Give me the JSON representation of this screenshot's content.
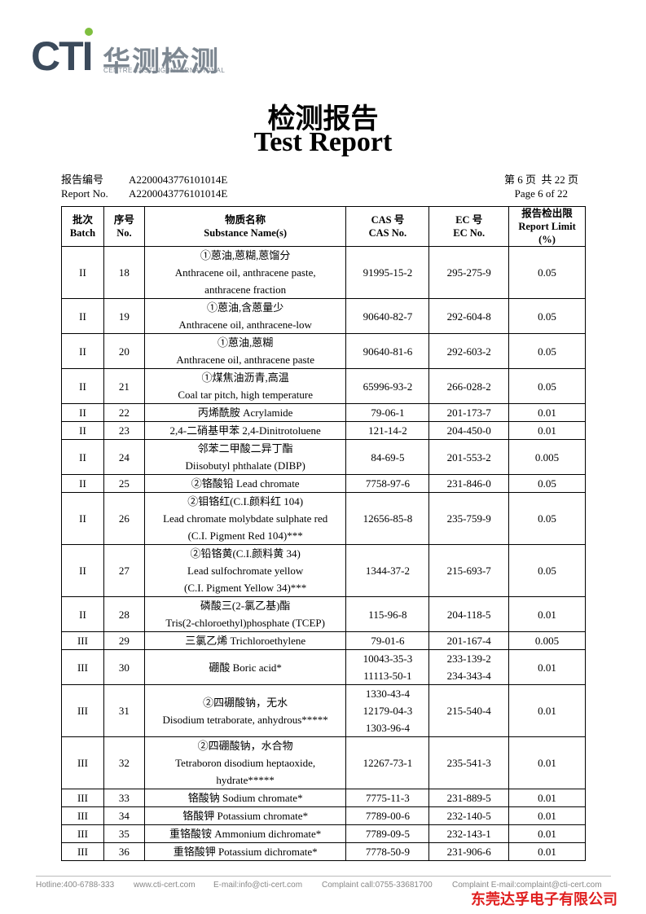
{
  "header": {
    "logo_letters": "CTI",
    "logo_cn": "华测检测",
    "logo_en": "CENTRE TESTING INTERNATIONAL"
  },
  "title_cn": "检测报告",
  "title_en": "Test Report",
  "report_info": {
    "no_label_cn": "报告编号",
    "no_cn": "A2200043776101014E",
    "no_label_en": "Report No.",
    "no_en": "A2200043776101014E",
    "page_cn": "第 6 页  共 22 页",
    "page_en": "Page 6 of 22"
  },
  "table": {
    "columns": [
      {
        "cn": "批次",
        "en": "Batch"
      },
      {
        "cn": "序号",
        "en": "No."
      },
      {
        "cn": "物质名称",
        "en": "Substance Name(s)"
      },
      {
        "cn": "CAS 号",
        "en": "CAS No."
      },
      {
        "cn": "EC 号",
        "en": "EC No."
      },
      {
        "cn": "报告检出限",
        "en": "Report Limit (%)"
      }
    ],
    "rows": [
      {
        "batch": "II",
        "no": "18",
        "name": [
          "①蒽油,蒽糊,蒽馏分",
          "Anthracene oil, anthracene paste,",
          "anthracene fraction"
        ],
        "cas": [
          "91995-15-2"
        ],
        "ec": [
          "295-275-9"
        ],
        "limit": "0.05"
      },
      {
        "batch": "II",
        "no": "19",
        "name": [
          "①蒽油,含蒽量少",
          "Anthracene oil, anthracene-low"
        ],
        "cas": [
          "90640-82-7"
        ],
        "ec": [
          "292-604-8"
        ],
        "limit": "0.05"
      },
      {
        "batch": "II",
        "no": "20",
        "name": [
          "①蒽油,蒽糊",
          "Anthracene oil, anthracene paste"
        ],
        "cas": [
          "90640-81-6"
        ],
        "ec": [
          "292-603-2"
        ],
        "limit": "0.05"
      },
      {
        "batch": "II",
        "no": "21",
        "name": [
          "①煤焦油沥青,高温",
          "Coal tar pitch, high temperature"
        ],
        "cas": [
          "65996-93-2"
        ],
        "ec": [
          "266-028-2"
        ],
        "limit": "0.05"
      },
      {
        "batch": "II",
        "no": "22",
        "name": [
          "丙烯酰胺 Acrylamide"
        ],
        "cas": [
          "79-06-1"
        ],
        "ec": [
          "201-173-7"
        ],
        "limit": "0.01"
      },
      {
        "batch": "II",
        "no": "23",
        "name": [
          "2,4-二硝基甲苯 2,4-Dinitrotoluene"
        ],
        "cas": [
          "121-14-2"
        ],
        "ec": [
          "204-450-0"
        ],
        "limit": "0.01"
      },
      {
        "batch": "II",
        "no": "24",
        "name": [
          "邻苯二甲酸二异丁酯",
          "Diisobutyl phthalate (DIBP)"
        ],
        "cas": [
          "84-69-5"
        ],
        "ec": [
          "201-553-2"
        ],
        "limit": "0.005"
      },
      {
        "batch": "II",
        "no": "25",
        "name": [
          "②铬酸铅 Lead chromate"
        ],
        "cas": [
          "7758-97-6"
        ],
        "ec": [
          "231-846-0"
        ],
        "limit": "0.05"
      },
      {
        "batch": "II",
        "no": "26",
        "name": [
          "②钼铬红(C.I.颜料红 104)",
          "Lead chromate molybdate sulphate red",
          "(C.I. Pigment Red 104)***"
        ],
        "cas": [
          "12656-85-8"
        ],
        "ec": [
          "235-759-9"
        ],
        "limit": "0.05"
      },
      {
        "batch": "II",
        "no": "27",
        "name": [
          "②铅铬黄(C.I.颜料黄 34)",
          "Lead sulfochromate yellow",
          "(C.I. Pigment Yellow 34)***"
        ],
        "cas": [
          "1344-37-2"
        ],
        "ec": [
          "215-693-7"
        ],
        "limit": "0.05"
      },
      {
        "batch": "II",
        "no": "28",
        "name": [
          "磷酸三(2-氯乙基)酯",
          "Tris(2-chloroethyl)phosphate (TCEP)"
        ],
        "cas": [
          "115-96-8"
        ],
        "ec": [
          "204-118-5"
        ],
        "limit": "0.01"
      },
      {
        "batch": "III",
        "no": "29",
        "name": [
          "三氯乙烯 Trichloroethylene"
        ],
        "cas": [
          "79-01-6"
        ],
        "ec": [
          "201-167-4"
        ],
        "limit": "0.005"
      },
      {
        "batch": "III",
        "no": "30",
        "name": [
          "硼酸 Boric acid*"
        ],
        "cas": [
          "10043-35-3",
          "11113-50-1"
        ],
        "ec": [
          "233-139-2",
          "234-343-4"
        ],
        "limit": "0.01"
      },
      {
        "batch": "III",
        "no": "31",
        "name": [
          "②四硼酸钠，无水",
          "Disodium tetraborate, anhydrous*****"
        ],
        "cas": [
          "1330-43-4",
          "12179-04-3",
          "1303-96-4"
        ],
        "ec": [
          "215-540-4"
        ],
        "limit": "0.01"
      },
      {
        "batch": "III",
        "no": "32",
        "name": [
          "②四硼酸钠，水合物",
          "Tetraboron disodium heptaoxide,",
          "hydrate*****"
        ],
        "cas": [
          "12267-73-1"
        ],
        "ec": [
          "235-541-3"
        ],
        "limit": "0.01"
      },
      {
        "batch": "III",
        "no": "33",
        "name": [
          "铬酸钠 Sodium chromate*"
        ],
        "cas": [
          "7775-11-3"
        ],
        "ec": [
          "231-889-5"
        ],
        "limit": "0.01"
      },
      {
        "batch": "III",
        "no": "34",
        "name": [
          "铬酸钾 Potassium chromate*"
        ],
        "cas": [
          "7789-00-6"
        ],
        "ec": [
          "232-140-5"
        ],
        "limit": "0.01"
      },
      {
        "batch": "III",
        "no": "35",
        "name": [
          "重铬酸铵 Ammonium dichromate*"
        ],
        "cas": [
          "7789-09-5"
        ],
        "ec": [
          "232-143-1"
        ],
        "limit": "0.01"
      },
      {
        "batch": "III",
        "no": "36",
        "name": [
          "重铬酸钾 Potassium dichromate*"
        ],
        "cas": [
          "7778-50-9"
        ],
        "ec": [
          "231-906-6"
        ],
        "limit": "0.01"
      }
    ]
  },
  "footer": {
    "hotline": "Hotline:400-6788-333",
    "website": "www.cti-cert.com",
    "email": "E-mail:info@cti-cert.com",
    "complaint_call": "Complaint call:0755-33681700",
    "complaint_email": "Complaint E-mail:complaint@cti-cert.com",
    "company": "东莞达孚电子有限公司"
  }
}
